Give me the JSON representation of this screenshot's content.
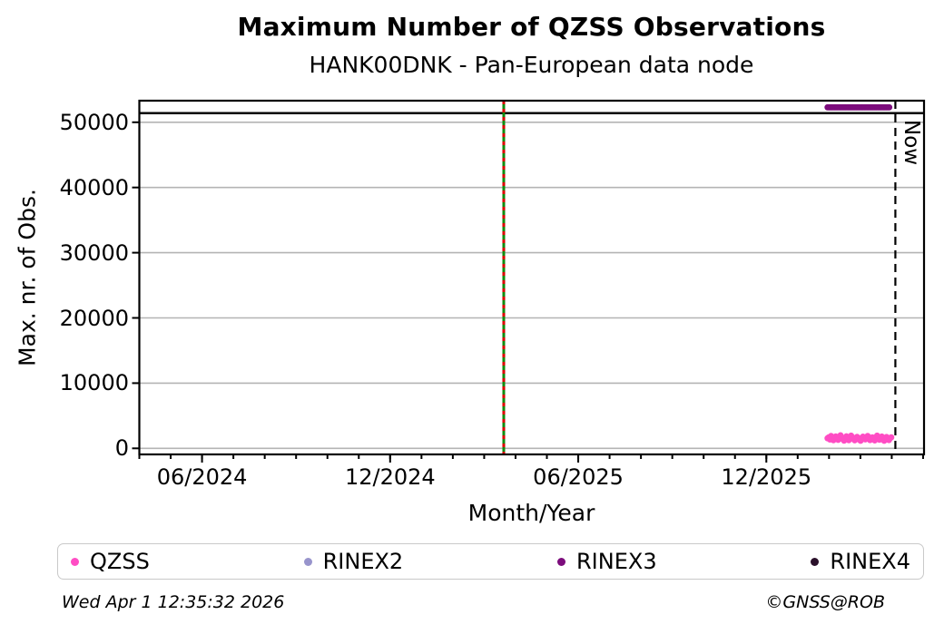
{
  "figure": {
    "title": "Maximum Number of QZSS Observations",
    "subtitle": "HANK00DNK - Pan-European data node",
    "footer_left": "Wed Apr  1 12:35:32 2026",
    "footer_right": "©GNSS@ROB"
  },
  "legend": {
    "items": [
      {
        "label": "QZSS",
        "color": "#ff4dc4"
      },
      {
        "label": "RINEX2",
        "color": "#9894cc"
      },
      {
        "label": "RINEX3",
        "color": "#7c0d7c"
      },
      {
        "label": "RINEX4",
        "color": "#2a102a"
      }
    ]
  },
  "chart_data": {
    "type": "scatter",
    "title": "Maximum Number of QZSS Observations",
    "subtitle": "HANK00DNK - Pan-European data node",
    "xlabel": "Month/Year",
    "ylabel": "Max. nr. of Obs.",
    "grid": true,
    "gridline_color": "#b4b4b4",
    "x_range_dates": [
      "2024-04-01",
      "2026-05-01"
    ],
    "x_span_months": 25.03,
    "ylim": [
      -930,
      53310
    ],
    "y_ticks": [
      {
        "value": 0,
        "label": "0"
      },
      {
        "value": 10000,
        "label": "10000"
      },
      {
        "value": 20000,
        "label": "20000"
      },
      {
        "value": 30000,
        "label": "30000"
      },
      {
        "value": 40000,
        "label": "40000"
      },
      {
        "value": 50000,
        "label": "50000"
      }
    ],
    "x_major_ticks": [
      {
        "date": "2024-06-01",
        "label": "06/2024"
      },
      {
        "date": "2024-12-01",
        "label": "12/2024"
      },
      {
        "date": "2025-06-01",
        "label": "06/2025"
      },
      {
        "date": "2025-12-01",
        "label": "12/2025"
      }
    ],
    "x_minor_tick_interval_months": 1,
    "reference_lines": {
      "max_obs_line": {
        "value": 51400,
        "color": "#000000",
        "style": "solid"
      },
      "event_line": {
        "date": "2025-03-20",
        "solid_color": "#0f8b0f",
        "dash_color": "#dd0000",
        "style": "green solid with red dashes",
        "orientation": "vertical"
      },
      "now_line": {
        "date": "2026-04-01",
        "label": "Now",
        "color": "#000000",
        "style": "dashed",
        "orientation": "vertical"
      }
    },
    "series": [
      {
        "name": "QZSS",
        "color": "#ff4dc4",
        "marker": "dot",
        "start_date": "2026-01-30",
        "end_date": "2026-03-31",
        "values": [
          1550,
          1700,
          1350,
          1900,
          1620,
          1250,
          1480,
          1820,
          1560,
          1300,
          1720,
          2000,
          1650,
          1400,
          1180,
          1600,
          1850,
          1500,
          1260,
          1560,
          1950,
          1700,
          1420,
          1220,
          1520,
          1760,
          1600,
          1310,
          1150,
          1460,
          1800,
          1660,
          1360,
          1540,
          1900,
          1610,
          1270,
          1410,
          1700,
          1510,
          1210,
          1640,
          1950,
          1560,
          1320,
          1500,
          1810,
          1430,
          1160,
          1590,
          1740,
          1460,
          1270,
          1550,
          1680
        ]
      },
      {
        "name": "RINEX2",
        "color": "#9894cc",
        "marker": "dot",
        "values": []
      },
      {
        "name": "RINEX3",
        "color": "#7c0d7c",
        "marker": "dot",
        "start_date": "2026-01-30",
        "end_date": "2026-03-29",
        "constant_value": 52300,
        "n_points": 55
      },
      {
        "name": "RINEX4",
        "color": "#2a102a",
        "marker": "dot",
        "values": []
      }
    ],
    "legend_position": "bottom"
  }
}
